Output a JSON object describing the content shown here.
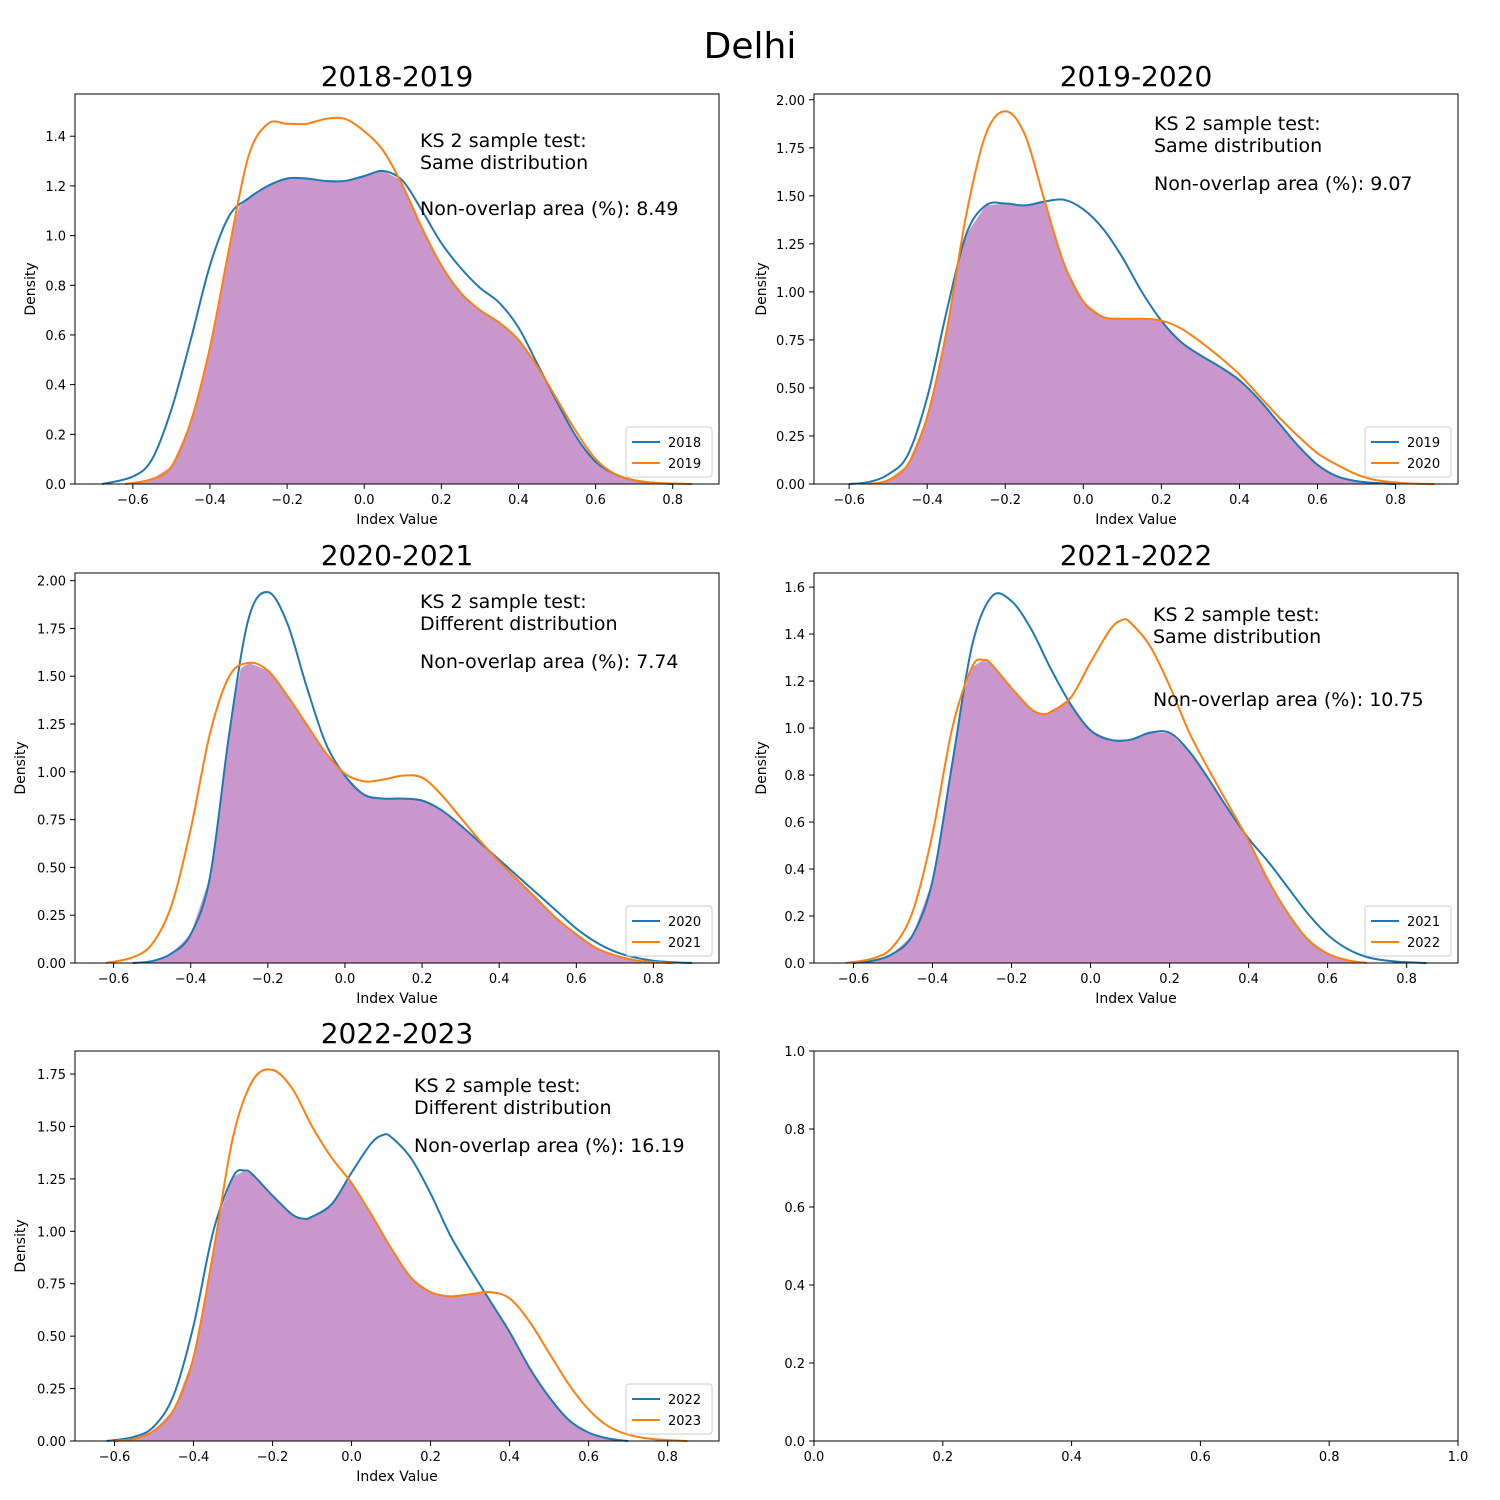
{
  "figure": {
    "title": "Delhi"
  },
  "chart_data": [
    {
      "type": "area",
      "title": "2018-2019",
      "xlabel": "Index Value",
      "ylabel": "Density",
      "xlim": [
        -0.75,
        0.92
      ],
      "ylim": [
        0,
        1.57
      ],
      "xticks": [
        -0.6,
        -0.4,
        -0.2,
        0.0,
        0.2,
        0.4,
        0.6,
        0.8
      ],
      "xtick_labels": [
        "−0.6",
        "−0.4",
        "−0.2",
        "0.0",
        "0.2",
        "0.4",
        "0.6",
        "0.8"
      ],
      "yticks": [
        0.0,
        0.2,
        0.4,
        0.6,
        0.8,
        1.0,
        1.2,
        1.4
      ],
      "ytick_labels": [
        "0.0",
        "0.2",
        "0.4",
        "0.6",
        "0.8",
        "1.0",
        "1.2",
        "1.4"
      ],
      "annotation": [
        "KS 2 sample test:",
        "Same distribution",
        "Non-overlap area (%): 8.49"
      ],
      "legend_position": "lower right",
      "series": [
        {
          "name": "2018",
          "color": "#1f77b4",
          "x": [
            -0.68,
            -0.6,
            -0.55,
            -0.5,
            -0.45,
            -0.4,
            -0.35,
            -0.3,
            -0.25,
            -0.2,
            -0.15,
            -0.1,
            -0.05,
            0.0,
            0.05,
            0.1,
            0.15,
            0.2,
            0.25,
            0.3,
            0.35,
            0.4,
            0.45,
            0.5,
            0.55,
            0.6,
            0.65,
            0.7,
            0.75,
            0.8
          ],
          "y": [
            0.0,
            0.03,
            0.1,
            0.3,
            0.58,
            0.88,
            1.08,
            1.15,
            1.2,
            1.23,
            1.23,
            1.22,
            1.22,
            1.24,
            1.26,
            1.22,
            1.1,
            0.97,
            0.87,
            0.79,
            0.73,
            0.63,
            0.48,
            0.33,
            0.19,
            0.09,
            0.04,
            0.015,
            0.005,
            0.0
          ]
        },
        {
          "name": "2019",
          "color": "#ff7f0e",
          "x": [
            -0.62,
            -0.55,
            -0.5,
            -0.45,
            -0.4,
            -0.35,
            -0.3,
            -0.25,
            -0.2,
            -0.15,
            -0.1,
            -0.05,
            0.0,
            0.05,
            0.1,
            0.15,
            0.2,
            0.25,
            0.3,
            0.35,
            0.4,
            0.45,
            0.5,
            0.55,
            0.6,
            0.65,
            0.7,
            0.75,
            0.8,
            0.85
          ],
          "y": [
            0.0,
            0.02,
            0.07,
            0.25,
            0.55,
            0.95,
            1.32,
            1.45,
            1.45,
            1.45,
            1.47,
            1.47,
            1.42,
            1.34,
            1.2,
            1.03,
            0.88,
            0.77,
            0.7,
            0.65,
            0.58,
            0.47,
            0.34,
            0.21,
            0.1,
            0.04,
            0.015,
            0.005,
            0.002,
            0.0
          ]
        }
      ]
    },
    {
      "type": "area",
      "title": "2019-2020",
      "xlabel": "Index Value",
      "ylabel": "Density",
      "xlim": [
        -0.69,
        0.96
      ],
      "ylim": [
        0,
        2.03
      ],
      "xticks": [
        -0.6,
        -0.4,
        -0.2,
        0.0,
        0.2,
        0.4,
        0.6,
        0.8
      ],
      "xtick_labels": [
        "−0.6",
        "−0.4",
        "−0.2",
        "0.0",
        "0.2",
        "0.4",
        "0.6",
        "0.8"
      ],
      "yticks": [
        0.0,
        0.25,
        0.5,
        0.75,
        1.0,
        1.25,
        1.5,
        1.75,
        2.0
      ],
      "ytick_labels": [
        "0.00",
        "0.25",
        "0.50",
        "0.75",
        "1.00",
        "1.25",
        "1.50",
        "1.75",
        "2.00"
      ],
      "annotation": [
        "KS 2 sample test:",
        "Same distribution",
        "Non-overlap area (%): 9.07"
      ],
      "legend_position": "lower right",
      "series": [
        {
          "name": "2019",
          "color": "#1f77b4",
          "x": [
            -0.6,
            -0.55,
            -0.5,
            -0.45,
            -0.4,
            -0.35,
            -0.3,
            -0.25,
            -0.2,
            -0.15,
            -0.1,
            -0.05,
            0.0,
            0.05,
            0.1,
            0.15,
            0.2,
            0.25,
            0.3,
            0.35,
            0.4,
            0.45,
            0.5,
            0.55,
            0.6,
            0.65,
            0.7,
            0.75,
            0.8
          ],
          "y": [
            0.0,
            0.01,
            0.05,
            0.15,
            0.45,
            0.9,
            1.3,
            1.45,
            1.46,
            1.45,
            1.47,
            1.48,
            1.43,
            1.33,
            1.18,
            1.0,
            0.85,
            0.74,
            0.67,
            0.61,
            0.54,
            0.44,
            0.32,
            0.2,
            0.1,
            0.04,
            0.015,
            0.005,
            0.0
          ]
        },
        {
          "name": "2020",
          "color": "#ff7f0e",
          "x": [
            -0.55,
            -0.5,
            -0.45,
            -0.4,
            -0.35,
            -0.3,
            -0.25,
            -0.2,
            -0.15,
            -0.1,
            -0.05,
            0.0,
            0.05,
            0.1,
            0.15,
            0.2,
            0.25,
            0.3,
            0.35,
            0.4,
            0.45,
            0.5,
            0.55,
            0.6,
            0.65,
            0.7,
            0.75,
            0.8,
            0.85,
            0.9
          ],
          "y": [
            0.0,
            0.02,
            0.1,
            0.35,
            0.8,
            1.4,
            1.82,
            1.94,
            1.82,
            1.48,
            1.15,
            0.95,
            0.87,
            0.86,
            0.86,
            0.85,
            0.81,
            0.74,
            0.66,
            0.57,
            0.46,
            0.35,
            0.25,
            0.16,
            0.1,
            0.05,
            0.02,
            0.008,
            0.002,
            0.0
          ]
        }
      ]
    },
    {
      "type": "area",
      "title": "2020-2021",
      "xlabel": "Index Value",
      "ylabel": "Density",
      "xlim": [
        -0.7,
        0.97
      ],
      "ylim": [
        0,
        2.04
      ],
      "xticks": [
        -0.6,
        -0.4,
        -0.2,
        0.0,
        0.2,
        0.4,
        0.6,
        0.8
      ],
      "xtick_labels": [
        "−0.6",
        "−0.4",
        "−0.2",
        "0.0",
        "0.2",
        "0.4",
        "0.6",
        "0.8"
      ],
      "yticks": [
        0.0,
        0.25,
        0.5,
        0.75,
        1.0,
        1.25,
        1.5,
        1.75,
        2.0
      ],
      "ytick_labels": [
        "0.00",
        "0.25",
        "0.50",
        "0.75",
        "1.00",
        "1.25",
        "1.50",
        "1.75",
        "2.00"
      ],
      "annotation": [
        "KS 2 sample test:",
        "Different distribution",
        "Non-overlap area (%): 7.74"
      ],
      "legend_position": "lower right",
      "series": [
        {
          "name": "2020",
          "color": "#1f77b4",
          "x": [
            -0.55,
            -0.5,
            -0.45,
            -0.4,
            -0.35,
            -0.3,
            -0.25,
            -0.2,
            -0.15,
            -0.1,
            -0.05,
            0.0,
            0.05,
            0.1,
            0.15,
            0.2,
            0.25,
            0.3,
            0.35,
            0.4,
            0.45,
            0.5,
            0.55,
            0.6,
            0.65,
            0.7,
            0.75,
            0.8,
            0.85,
            0.9
          ],
          "y": [
            0.0,
            0.01,
            0.05,
            0.15,
            0.45,
            1.2,
            1.8,
            1.94,
            1.78,
            1.45,
            1.15,
            0.98,
            0.88,
            0.86,
            0.86,
            0.85,
            0.8,
            0.72,
            0.63,
            0.54,
            0.45,
            0.36,
            0.27,
            0.18,
            0.11,
            0.06,
            0.03,
            0.012,
            0.004,
            0.0
          ]
        },
        {
          "name": "2021",
          "color": "#ff7f0e",
          "x": [
            -0.62,
            -0.55,
            -0.5,
            -0.45,
            -0.4,
            -0.35,
            -0.3,
            -0.25,
            -0.2,
            -0.15,
            -0.1,
            -0.05,
            0.0,
            0.05,
            0.1,
            0.15,
            0.2,
            0.25,
            0.3,
            0.35,
            0.4,
            0.45,
            0.5,
            0.55,
            0.6,
            0.65,
            0.7,
            0.75,
            0.8,
            0.85
          ],
          "y": [
            0.0,
            0.03,
            0.1,
            0.3,
            0.7,
            1.2,
            1.5,
            1.57,
            1.53,
            1.4,
            1.25,
            1.1,
            0.99,
            0.95,
            0.96,
            0.98,
            0.97,
            0.88,
            0.76,
            0.64,
            0.53,
            0.43,
            0.33,
            0.23,
            0.15,
            0.08,
            0.04,
            0.015,
            0.005,
            0.0
          ]
        }
      ]
    },
    {
      "type": "area",
      "title": "2021-2022",
      "xlabel": "Index Value",
      "ylabel": "Density",
      "xlim": [
        -0.7,
        0.93
      ],
      "ylim": [
        0,
        1.66
      ],
      "xticks": [
        -0.6,
        -0.4,
        -0.2,
        0.0,
        0.2,
        0.4,
        0.6,
        0.8
      ],
      "xtick_labels": [
        "−0.6",
        "−0.4",
        "−0.2",
        "0.0",
        "0.2",
        "0.4",
        "0.6",
        "0.8"
      ],
      "yticks": [
        0.0,
        0.2,
        0.4,
        0.6,
        0.8,
        1.0,
        1.2,
        1.4,
        1.6
      ],
      "ytick_labels": [
        "0.0",
        "0.2",
        "0.4",
        "0.6",
        "0.8",
        "1.0",
        "1.2",
        "1.4",
        "1.6"
      ],
      "annotation": [
        "KS 2 sample test:",
        "Same distribution",
        "Non-overlap area (%): 10.75"
      ],
      "legend_position": "lower right",
      "series": [
        {
          "name": "2021",
          "color": "#1f77b4",
          "x": [
            -0.6,
            -0.55,
            -0.5,
            -0.45,
            -0.4,
            -0.35,
            -0.3,
            -0.25,
            -0.2,
            -0.15,
            -0.1,
            -0.05,
            0.0,
            0.05,
            0.1,
            0.15,
            0.2,
            0.25,
            0.3,
            0.35,
            0.4,
            0.45,
            0.5,
            0.55,
            0.6,
            0.65,
            0.7,
            0.75,
            0.8,
            0.85
          ],
          "y": [
            0.0,
            0.01,
            0.04,
            0.12,
            0.35,
            0.85,
            1.35,
            1.56,
            1.54,
            1.42,
            1.25,
            1.1,
            0.99,
            0.95,
            0.95,
            0.98,
            0.98,
            0.9,
            0.78,
            0.65,
            0.53,
            0.43,
            0.32,
            0.21,
            0.12,
            0.06,
            0.025,
            0.01,
            0.003,
            0.0
          ]
        },
        {
          "name": "2022",
          "color": "#ff7f0e",
          "x": [
            -0.62,
            -0.55,
            -0.5,
            -0.45,
            -0.4,
            -0.35,
            -0.3,
            -0.27,
            -0.25,
            -0.2,
            -0.15,
            -0.12,
            -0.1,
            -0.05,
            0.0,
            0.05,
            0.08,
            0.1,
            0.15,
            0.2,
            0.25,
            0.3,
            0.35,
            0.4,
            0.45,
            0.5,
            0.55,
            0.6,
            0.65,
            0.7
          ],
          "y": [
            0.0,
            0.02,
            0.07,
            0.22,
            0.55,
            1.0,
            1.26,
            1.29,
            1.27,
            1.17,
            1.08,
            1.06,
            1.07,
            1.13,
            1.28,
            1.42,
            1.46,
            1.45,
            1.35,
            1.18,
            0.98,
            0.82,
            0.67,
            0.52,
            0.35,
            0.21,
            0.1,
            0.04,
            0.012,
            0.0
          ]
        }
      ]
    },
    {
      "type": "area",
      "title": "2022-2023",
      "xlabel": "Index Value",
      "ylabel": "Density",
      "xlim": [
        -0.7,
        0.93
      ],
      "ylim": [
        0,
        1.86
      ],
      "xticks": [
        -0.6,
        -0.4,
        -0.2,
        0.0,
        0.2,
        0.4,
        0.6,
        0.8
      ],
      "xtick_labels": [
        "−0.6",
        "−0.4",
        "−0.2",
        "0.0",
        "0.2",
        "0.4",
        "0.6",
        "0.8"
      ],
      "yticks": [
        0.0,
        0.25,
        0.5,
        0.75,
        1.0,
        1.25,
        1.5,
        1.75
      ],
      "ytick_labels": [
        "0.00",
        "0.25",
        "0.50",
        "0.75",
        "1.00",
        "1.25",
        "1.50",
        "1.75"
      ],
      "annotation": [
        "KS 2 sample test:",
        "Different distribution",
        "Non-overlap area (%): 16.19"
      ],
      "legend_position": "lower right",
      "series": [
        {
          "name": "2022",
          "color": "#1f77b4",
          "x": [
            -0.62,
            -0.55,
            -0.5,
            -0.45,
            -0.4,
            -0.35,
            -0.3,
            -0.27,
            -0.25,
            -0.2,
            -0.15,
            -0.12,
            -0.1,
            -0.05,
            0.0,
            0.05,
            0.08,
            0.1,
            0.15,
            0.2,
            0.25,
            0.3,
            0.35,
            0.4,
            0.45,
            0.5,
            0.55,
            0.6,
            0.65,
            0.7
          ],
          "y": [
            0.0,
            0.02,
            0.07,
            0.22,
            0.55,
            1.0,
            1.26,
            1.29,
            1.27,
            1.17,
            1.08,
            1.06,
            1.07,
            1.13,
            1.28,
            1.42,
            1.46,
            1.45,
            1.35,
            1.18,
            0.98,
            0.82,
            0.67,
            0.52,
            0.35,
            0.21,
            0.1,
            0.04,
            0.012,
            0.0
          ]
        },
        {
          "name": "2023",
          "color": "#ff7f0e",
          "x": [
            -0.6,
            -0.55,
            -0.5,
            -0.45,
            -0.4,
            -0.35,
            -0.3,
            -0.25,
            -0.2,
            -0.15,
            -0.1,
            -0.05,
            0.0,
            0.05,
            0.1,
            0.15,
            0.2,
            0.25,
            0.3,
            0.35,
            0.4,
            0.45,
            0.5,
            0.55,
            0.6,
            0.65,
            0.7,
            0.75,
            0.8,
            0.85
          ],
          "y": [
            0.0,
            0.01,
            0.05,
            0.15,
            0.4,
            0.9,
            1.45,
            1.72,
            1.77,
            1.68,
            1.5,
            1.35,
            1.23,
            1.08,
            0.92,
            0.78,
            0.71,
            0.69,
            0.7,
            0.71,
            0.68,
            0.57,
            0.42,
            0.27,
            0.15,
            0.07,
            0.03,
            0.012,
            0.004,
            0.0
          ]
        }
      ]
    },
    {
      "type": "line",
      "title": "",
      "xlabel": "",
      "ylabel": "",
      "xlim": [
        0,
        1
      ],
      "ylim": [
        0,
        1
      ],
      "xticks": [
        0.0,
        0.2,
        0.4,
        0.6,
        0.8,
        1.0
      ],
      "xtick_labels": [
        "0.0",
        "0.2",
        "0.4",
        "0.6",
        "0.8",
        "1.0"
      ],
      "yticks": [
        0.0,
        0.2,
        0.4,
        0.6,
        0.8,
        1.0
      ],
      "ytick_labels": [
        "0.0",
        "0.2",
        "0.4",
        "0.6",
        "0.8",
        "1.0"
      ],
      "annotation": [],
      "series": []
    }
  ],
  "style": {
    "overlap_fill": "#c997cb",
    "legend_border": "#cccccc"
  }
}
